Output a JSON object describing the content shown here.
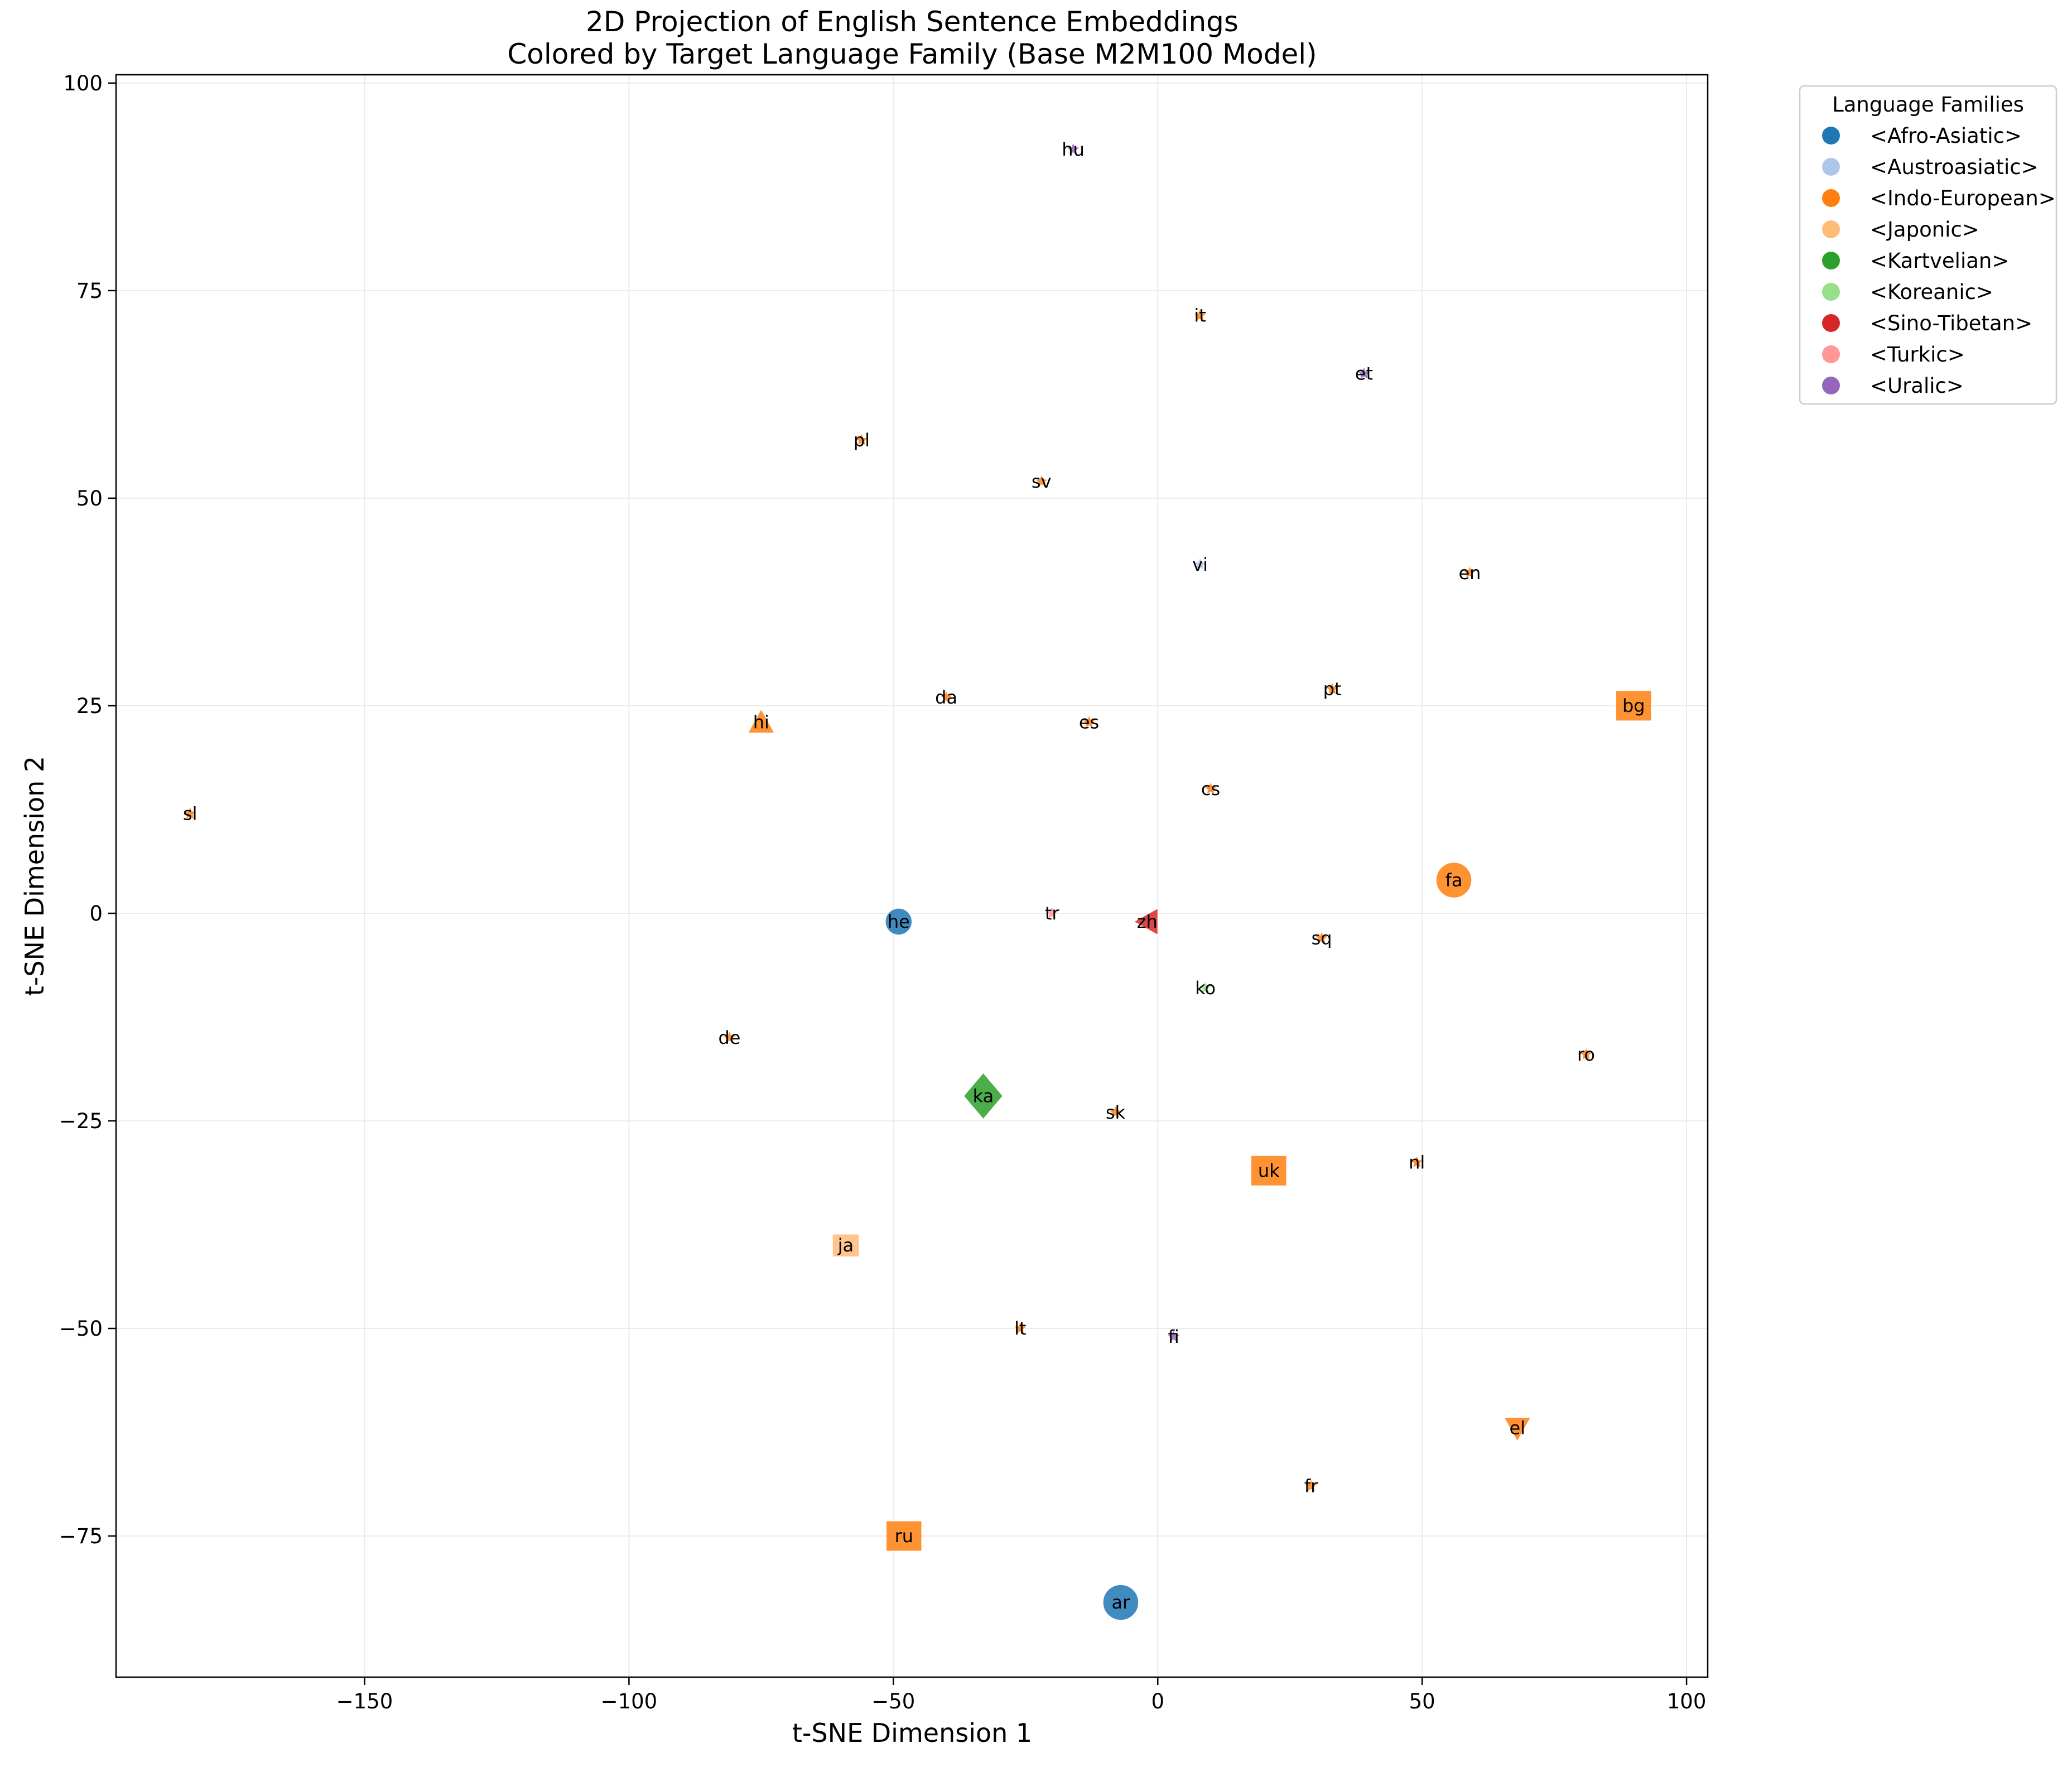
{
  "chart_data": {
    "type": "scatter",
    "title": "2D Projection of English Sentence Embeddings",
    "subtitle": "Colored by Target Language Family (Base M2M100 Model)",
    "xlabel": "t-SNE Dimension 1",
    "ylabel": "t-SNE Dimension 2",
    "xlim": [
      -197,
      104
    ],
    "ylim": [
      -92,
      101
    ],
    "xticks": [
      -150,
      -100,
      -50,
      0,
      50,
      100
    ],
    "yticks": [
      -75,
      -50,
      -25,
      0,
      25,
      50,
      75,
      100
    ],
    "xtick_labels": [
      "−150",
      "−100",
      "−50",
      "0",
      "50",
      "100"
    ],
    "ytick_labels": [
      "−75",
      "−50",
      "−25",
      "0",
      "25",
      "50",
      "75",
      "100"
    ],
    "grid": true,
    "legend_placement": "outside-top-right",
    "legend": {
      "title": "Language Families",
      "entries": [
        {
          "label": "<Afro-Asiatic>",
          "color": "#1f77b4"
        },
        {
          "label": "<Austroasiatic>",
          "color": "#aec7e8"
        },
        {
          "label": "<Indo-European>",
          "color": "#ff7f0e"
        },
        {
          "label": "<Japonic>",
          "color": "#ffbb78"
        },
        {
          "label": "<Kartvelian>",
          "color": "#2ca02c"
        },
        {
          "label": "<Koreanic>",
          "color": "#98df8a"
        },
        {
          "label": "<Sino-Tibetan>",
          "color": "#d62728"
        },
        {
          "label": "<Turkic>",
          "color": "#ff9896"
        },
        {
          "label": "<Uralic>",
          "color": "#9467bd"
        }
      ]
    },
    "points": [
      {
        "label": "hu",
        "x": -16,
        "y": 92,
        "family": "<Uralic>",
        "color": "#9467bd",
        "marker": "star",
        "size": "small"
      },
      {
        "label": "it",
        "x": 8,
        "y": 72,
        "family": "<Indo-European>",
        "color": "#ff7f0e",
        "marker": "star",
        "size": "small"
      },
      {
        "label": "et",
        "x": 39,
        "y": 65,
        "family": "<Uralic>",
        "color": "#9467bd",
        "marker": "star",
        "size": "small"
      },
      {
        "label": "pl",
        "x": -56,
        "y": 57,
        "family": "<Indo-European>",
        "color": "#ff7f0e",
        "marker": "star",
        "size": "small"
      },
      {
        "label": "sv",
        "x": -22,
        "y": 52,
        "family": "<Indo-European>",
        "color": "#ff7f0e",
        "marker": "star",
        "size": "small"
      },
      {
        "label": "vi",
        "x": 8,
        "y": 42,
        "family": "<Austroasiatic>",
        "color": "#aec7e8",
        "marker": "star",
        "size": "small"
      },
      {
        "label": "en",
        "x": 59,
        "y": 41,
        "family": "<Indo-European>",
        "color": "#ff7f0e",
        "marker": "star",
        "size": "small"
      },
      {
        "label": "pt",
        "x": 33,
        "y": 27,
        "family": "<Indo-European>",
        "color": "#ff7f0e",
        "marker": "star",
        "size": "small"
      },
      {
        "label": "bg",
        "x": 90,
        "y": 25,
        "family": "<Indo-European>",
        "color": "#ff7f0e",
        "marker": "square",
        "size": "large"
      },
      {
        "label": "da",
        "x": -40,
        "y": 26,
        "family": "<Indo-European>",
        "color": "#ff7f0e",
        "marker": "star",
        "size": "small"
      },
      {
        "label": "es",
        "x": -13,
        "y": 23,
        "family": "<Indo-European>",
        "color": "#ff7f0e",
        "marker": "star",
        "size": "small"
      },
      {
        "label": "hi",
        "x": -75,
        "y": 23,
        "family": "<Indo-European>",
        "color": "#ff7f0e",
        "marker": "triangle-up",
        "size": "medium"
      },
      {
        "label": "cs",
        "x": 10,
        "y": 15,
        "family": "<Indo-European>",
        "color": "#ff7f0e",
        "marker": "star",
        "size": "small"
      },
      {
        "label": "sl",
        "x": -183,
        "y": 12,
        "family": "<Indo-European>",
        "color": "#ff7f0e",
        "marker": "star",
        "size": "small"
      },
      {
        "label": "fa",
        "x": 56,
        "y": 4,
        "family": "<Indo-European>",
        "color": "#ff7f0e",
        "marker": "circle",
        "size": "large"
      },
      {
        "label": "tr",
        "x": -20,
        "y": 0,
        "family": "<Turkic>",
        "color": "#ff9896",
        "marker": "star",
        "size": "small"
      },
      {
        "label": "he",
        "x": -49,
        "y": -1,
        "family": "<Afro-Asiatic>",
        "color": "#1f77b4",
        "marker": "circle",
        "size": "medium"
      },
      {
        "label": "zh",
        "x": -2,
        "y": -1,
        "family": "<Sino-Tibetan>",
        "color": "#d62728",
        "marker": "triangle-left",
        "size": "medium"
      },
      {
        "label": "sq",
        "x": 31,
        "y": -3,
        "family": "<Indo-European>",
        "color": "#ff7f0e",
        "marker": "star",
        "size": "small"
      },
      {
        "label": "ko",
        "x": 9,
        "y": -9,
        "family": "<Koreanic>",
        "color": "#98df8a",
        "marker": "star",
        "size": "small"
      },
      {
        "label": "de",
        "x": -81,
        "y": -15,
        "family": "<Indo-European>",
        "color": "#ff7f0e",
        "marker": "star",
        "size": "small"
      },
      {
        "label": "ro",
        "x": 81,
        "y": -17,
        "family": "<Indo-European>",
        "color": "#ff7f0e",
        "marker": "star",
        "size": "small"
      },
      {
        "label": "ka",
        "x": -33,
        "y": -22,
        "family": "<Kartvelian>",
        "color": "#2ca02c",
        "marker": "diamond",
        "size": "large"
      },
      {
        "label": "sk",
        "x": -8,
        "y": -24,
        "family": "<Indo-European>",
        "color": "#ff7f0e",
        "marker": "star",
        "size": "small"
      },
      {
        "label": "uk",
        "x": 21,
        "y": -31,
        "family": "<Indo-European>",
        "color": "#ff7f0e",
        "marker": "square",
        "size": "large"
      },
      {
        "label": "nl",
        "x": 49,
        "y": -30,
        "family": "<Indo-European>",
        "color": "#ff7f0e",
        "marker": "star",
        "size": "small"
      },
      {
        "label": "ja",
        "x": -59,
        "y": -40,
        "family": "<Japonic>",
        "color": "#ffbb78",
        "marker": "square",
        "size": "medium"
      },
      {
        "label": "lt",
        "x": -26,
        "y": -50,
        "family": "<Indo-European>",
        "color": "#ff7f0e",
        "marker": "star",
        "size": "small"
      },
      {
        "label": "fi",
        "x": 3,
        "y": -51,
        "family": "<Uralic>",
        "color": "#9467bd",
        "marker": "star",
        "size": "small"
      },
      {
        "label": "el",
        "x": 68,
        "y": -62,
        "family": "<Indo-European>",
        "color": "#ff7f0e",
        "marker": "triangle-down",
        "size": "medium"
      },
      {
        "label": "fr",
        "x": 29,
        "y": -69,
        "family": "<Indo-European>",
        "color": "#ff7f0e",
        "marker": "star",
        "size": "small"
      },
      {
        "label": "ru",
        "x": -48,
        "y": -75,
        "family": "<Indo-European>",
        "color": "#ff7f0e",
        "marker": "square",
        "size": "large"
      },
      {
        "label": "ar",
        "x": -7,
        "y": -83,
        "family": "<Afro-Asiatic>",
        "color": "#1f77b4",
        "marker": "circle",
        "size": "large"
      }
    ]
  }
}
